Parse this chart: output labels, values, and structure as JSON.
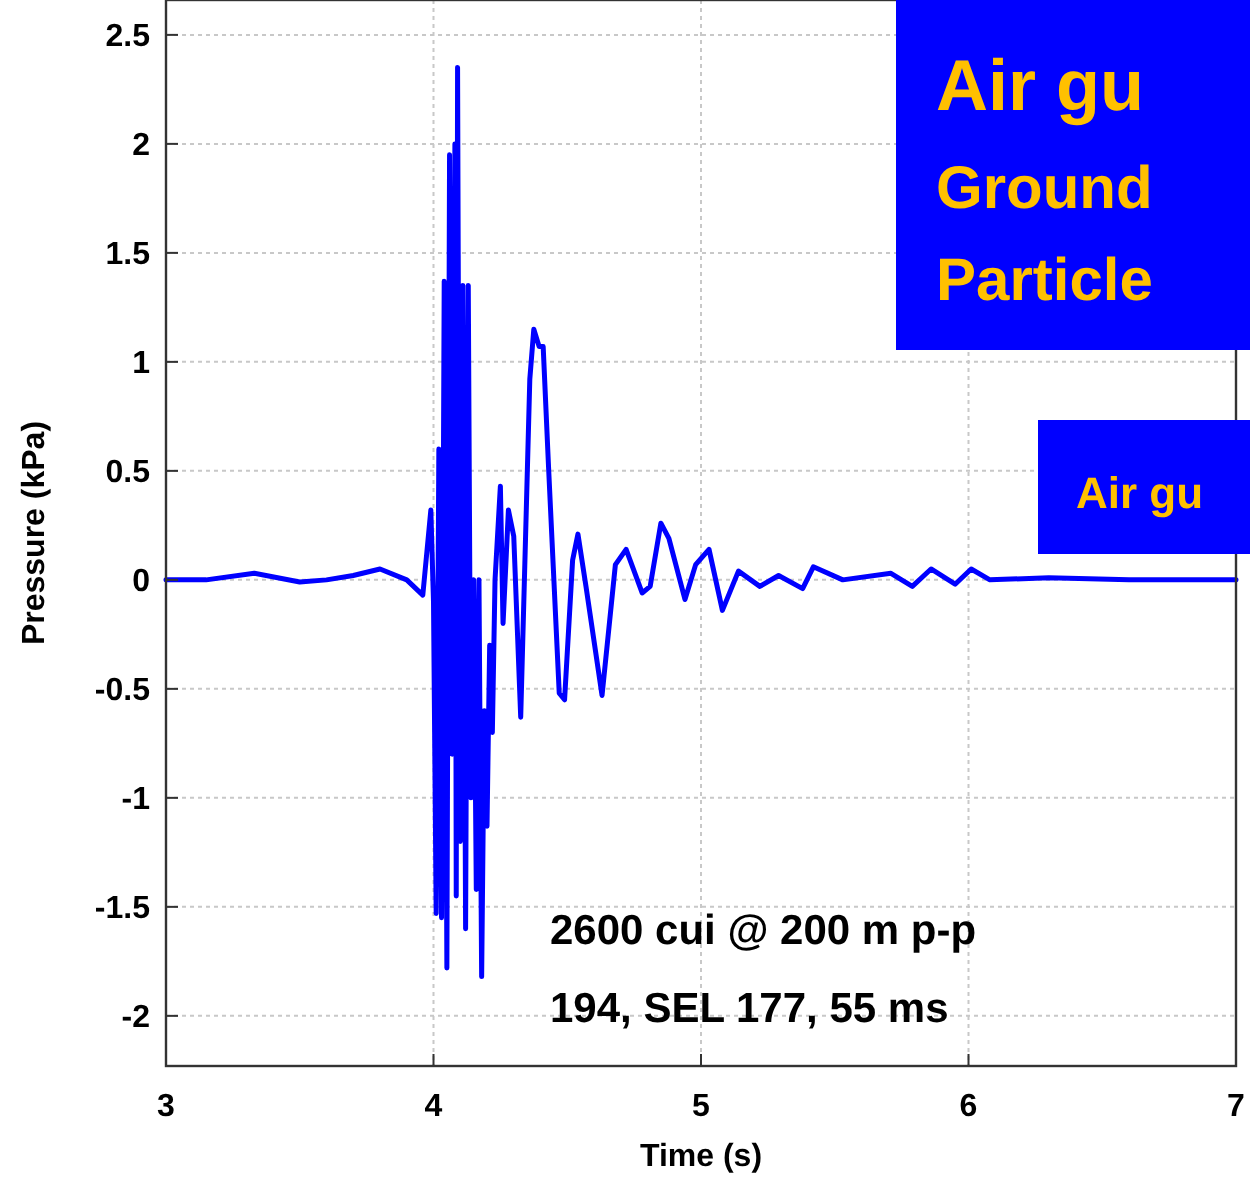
{
  "chart_data": {
    "type": "line",
    "xlabel": "Time (s)",
    "ylabel": "Pressure (kPa)",
    "xlim": [
      3,
      7
    ],
    "ylim": [
      -2.23,
      2.66
    ],
    "xticks": [
      3,
      4,
      5,
      6,
      7
    ],
    "yticks": [
      -2,
      -1.5,
      -1,
      -0.5,
      0,
      0.5,
      1,
      1.5,
      2,
      2.5
    ],
    "grid": true,
    "series": [
      {
        "color": "#0000ff",
        "x": [
          3.0,
          3.15,
          3.33,
          3.5,
          3.6,
          3.7,
          3.8,
          3.9,
          3.96,
          3.99,
          4.0,
          4.01,
          4.02,
          4.03,
          4.04,
          4.05,
          4.06,
          4.07,
          4.08,
          4.085,
          4.09,
          4.1,
          4.11,
          4.12,
          4.13,
          4.14,
          4.15,
          4.16,
          4.17,
          4.18,
          4.19,
          4.2,
          4.21,
          4.22,
          4.23,
          4.25,
          4.26,
          4.28,
          4.3,
          4.326,
          4.36,
          4.375,
          4.395,
          4.41,
          4.43,
          4.47,
          4.49,
          4.52,
          4.54,
          4.57,
          4.63,
          4.68,
          4.72,
          4.78,
          4.81,
          4.85,
          4.88,
          4.94,
          4.98,
          5.03,
          5.08,
          5.14,
          5.22,
          5.29,
          5.38,
          5.42,
          5.53,
          5.71,
          5.79,
          5.86,
          5.95,
          6.01,
          6.08,
          6.3,
          6.6,
          7.0
        ],
        "values": [
          0.0,
          0.0,
          0.03,
          -0.01,
          0.0,
          0.02,
          0.05,
          0.0,
          -0.07,
          0.32,
          -0.1,
          -1.53,
          0.6,
          -1.55,
          1.37,
          -1.78,
          1.95,
          -0.8,
          2.0,
          -1.45,
          2.35,
          -1.2,
          1.35,
          -1.6,
          1.35,
          -1.0,
          0.0,
          -1.42,
          0.0,
          -1.82,
          -0.6,
          -1.13,
          -0.3,
          -0.7,
          0.0,
          0.43,
          -0.2,
          0.32,
          0.2,
          -0.63,
          0.92,
          1.15,
          1.07,
          1.07,
          0.52,
          -0.52,
          -0.55,
          0.09,
          0.21,
          -0.03,
          -0.53,
          0.07,
          0.14,
          -0.06,
          -0.03,
          0.26,
          0.19,
          -0.09,
          0.07,
          0.14,
          -0.14,
          0.04,
          -0.03,
          0.02,
          -0.04,
          0.06,
          0.0,
          0.03,
          -0.03,
          0.05,
          -0.02,
          0.05,
          0.0,
          0.01,
          0.0,
          0.0
        ]
      }
    ],
    "annotations": [
      "2600 cui @ 200 m p-p 194, SEL 177, 55 ms",
      "Air gu",
      "Ground",
      "Particle",
      "Air gu"
    ]
  }
}
